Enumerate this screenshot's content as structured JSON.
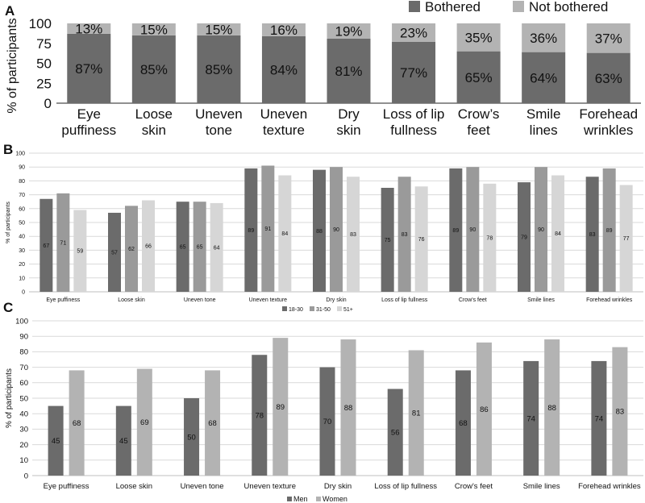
{
  "colors": {
    "dark": "#6b6b6b",
    "mid": "#9a9a9a",
    "light": "#b3b3b3",
    "pale": "#d6d6d6",
    "grid": "#d9d9d9",
    "axis": "#222222"
  },
  "chart_data": [
    {
      "panel": "A",
      "type": "bar",
      "stacked": true,
      "ylabel": "% of participants",
      "ylim": [
        0,
        100
      ],
      "yticks": [
        "0",
        "25",
        "50",
        "75",
        "100"
      ],
      "categories": [
        "Eye\npuffiness",
        "Loose\nskin",
        "Uneven\ntone",
        "Uneven\ntexture",
        "Dry\nskin",
        "Loss of lip\nfullness",
        "Crow’s\nfeet",
        "Smile\nlines",
        "Forehead\nwrinkles"
      ],
      "legend": [
        "Bothered",
        "Not bothered"
      ],
      "legend_position": "top-right",
      "series": [
        {
          "name": "Bothered",
          "values": [
            87,
            85,
            85,
            84,
            81,
            77,
            65,
            64,
            63
          ],
          "labels": [
            "87%",
            "85%",
            "85%",
            "84%",
            "81%",
            "77%",
            "65%",
            "64%",
            "63%"
          ]
        },
        {
          "name": "Not bothered",
          "values": [
            13,
            15,
            15,
            16,
            19,
            23,
            35,
            36,
            37
          ],
          "labels": [
            "13%",
            "15%",
            "15%",
            "16%",
            "19%",
            "23%",
            "35%",
            "36%",
            "37%"
          ]
        }
      ]
    },
    {
      "panel": "B",
      "type": "bar",
      "ylabel": "% of participants",
      "ylim": [
        0,
        100
      ],
      "yticks": [
        "0",
        "10",
        "20",
        "30",
        "40",
        "50",
        "60",
        "70",
        "80",
        "90",
        "100"
      ],
      "grid": true,
      "categories": [
        "Eye puffiness",
        "Loose skin",
        "Uneven tone",
        "Uneven texture",
        "Dry skin",
        "Loss of lip fullness",
        "Crow's feet",
        "Smile lines",
        "Forehead wrinkles"
      ],
      "legend": [
        "18-30",
        "31-50",
        "51+"
      ],
      "legend_position": "bottom",
      "series": [
        {
          "name": "18-30",
          "values": [
            67,
            57,
            65,
            89,
            88,
            75,
            89,
            79,
            83
          ],
          "labels": [
            "67",
            "57",
            "65",
            "89",
            "88",
            "75",
            "89",
            "79",
            "83"
          ]
        },
        {
          "name": "31-50",
          "values": [
            71,
            62,
            65,
            91,
            90,
            83,
            90,
            90,
            89
          ],
          "labels": [
            "71",
            "62",
            "65",
            "91",
            "90",
            "83",
            "90",
            "90",
            "89"
          ]
        },
        {
          "name": "51+",
          "values": [
            59,
            66,
            64,
            84,
            83,
            76,
            78,
            84,
            77
          ],
          "labels": [
            "59",
            "66",
            "64",
            "84",
            "83",
            "76",
            "78",
            "84",
            "77"
          ]
        }
      ]
    },
    {
      "panel": "C",
      "type": "bar",
      "ylabel": "% of participants",
      "ylim": [
        0,
        100
      ],
      "yticks": [
        "0",
        "10",
        "20",
        "30",
        "40",
        "50",
        "60",
        "70",
        "80",
        "90",
        "100"
      ],
      "grid": true,
      "categories": [
        "Eye puffiness",
        "Loose skin",
        "Uneven tone",
        "Uneven texture",
        "Dry skin",
        "Loss of lip fullness",
        "Crow's feet",
        "Smile lines",
        "Forehead wrinkles"
      ],
      "legend": [
        "Men",
        "Women"
      ],
      "legend_position": "bottom",
      "series": [
        {
          "name": "Men",
          "values": [
            45,
            45,
            50,
            78,
            70,
            56,
            68,
            74,
            74
          ],
          "labels": [
            "45",
            "45",
            "50",
            "78",
            "70",
            "56",
            "68",
            "74",
            "74"
          ]
        },
        {
          "name": "Women",
          "values": [
            68,
            69,
            68,
            89,
            88,
            81,
            86,
            88,
            83
          ],
          "labels": [
            "68",
            "69",
            "68",
            "89",
            "88",
            "81",
            "86",
            "88",
            "83"
          ]
        }
      ]
    }
  ]
}
